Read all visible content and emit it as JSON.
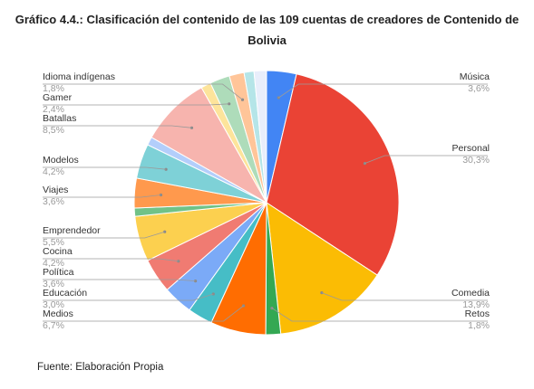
{
  "title_line1": "Gráfico 4.4.: Clasificación del contenido de las 109 cuentas de creadores de Contenido de",
  "title_line2": "Bolivia",
  "source": "Fuente: Elaboración Propia",
  "chart_data": {
    "type": "pie",
    "slices": [
      {
        "label": "Música",
        "display": "3,6%",
        "value": 3.6,
        "color": "#4285f4",
        "labeled": true
      },
      {
        "label": "Personal",
        "display": "30,3%",
        "value": 30.3,
        "color": "#ea4335",
        "labeled": true
      },
      {
        "label": "Comedia",
        "display": "13,9%",
        "value": 13.9,
        "color": "#fbbc04",
        "labeled": true
      },
      {
        "label": "Retos",
        "display": "1,8%",
        "value": 1.8,
        "color": "#34a853",
        "labeled": true
      },
      {
        "label": "Medios",
        "display": "6,7%",
        "value": 6.7,
        "color": "#ff6d01",
        "labeled": true
      },
      {
        "label": "Educación",
        "display": "3,0%",
        "value": 3.0,
        "color": "#46bdc6",
        "labeled": true
      },
      {
        "label": "Política",
        "display": "3,6%",
        "value": 3.6,
        "color": "#7baaf7",
        "labeled": true
      },
      {
        "label": "Cocina",
        "display": "4,2%",
        "value": 4.2,
        "color": "#f07b72",
        "labeled": true
      },
      {
        "label": "Emprendedor",
        "display": "5,5%",
        "value": 5.5,
        "color": "#fcd04f",
        "labeled": true
      },
      {
        "label": "",
        "display": "",
        "value": 1.0,
        "color": "#71c287",
        "labeled": false
      },
      {
        "label": "Viajes",
        "display": "3,6%",
        "value": 3.6,
        "color": "#ff994d",
        "labeled": true
      },
      {
        "label": "Modelos",
        "display": "4,2%",
        "value": 4.2,
        "color": "#7ed1d7",
        "labeled": true
      },
      {
        "label": "",
        "display": "",
        "value": 1.0,
        "color": "#b3cefb",
        "labeled": false
      },
      {
        "label": "Batallas",
        "display": "8,5%",
        "value": 8.5,
        "color": "#f7b4ae",
        "labeled": true
      },
      {
        "label": "",
        "display": "",
        "value": 1.2,
        "color": "#fde49b",
        "labeled": false
      },
      {
        "label": "Gamer",
        "display": "2,4%",
        "value": 2.4,
        "color": "#aedcba",
        "labeled": true
      },
      {
        "label": "Idioma indígenas",
        "display": "1,8%",
        "value": 1.8,
        "color": "#ffc599",
        "labeled": true
      },
      {
        "label": "",
        "display": "",
        "value": 1.2,
        "color": "#b5e5e8",
        "labeled": false
      },
      {
        "label": "",
        "display": "",
        "value": 1.5,
        "color": "#e8eefb",
        "labeled": false
      }
    ]
  }
}
